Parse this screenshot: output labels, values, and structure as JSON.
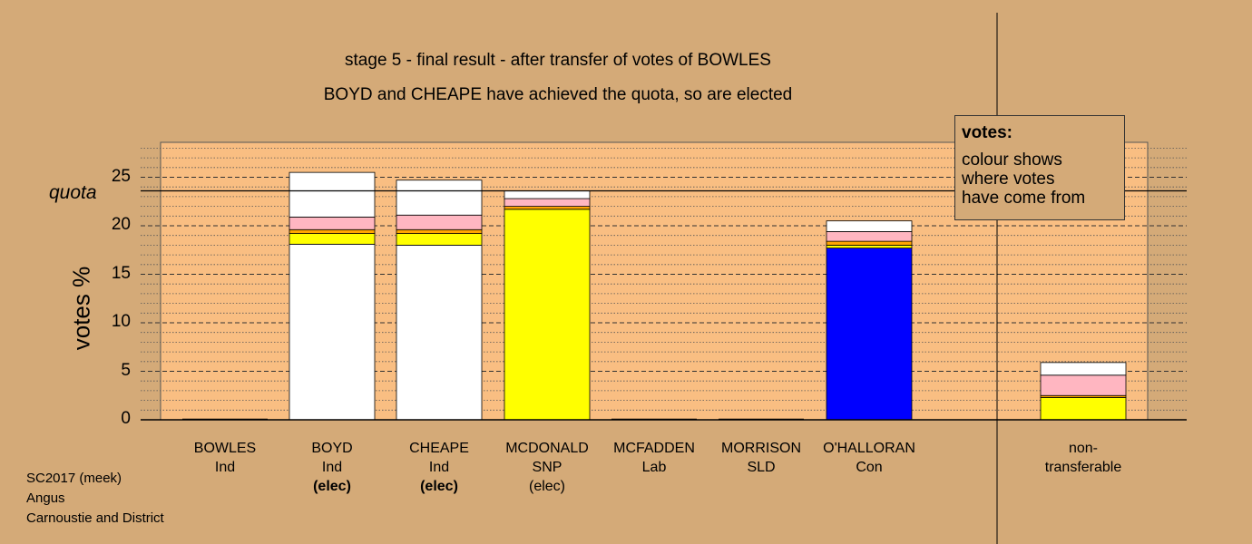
{
  "chart_data": {
    "type": "bar",
    "title": "stage 5 - final result - after transfer of votes of BOWLES",
    "subtitle": "BOYD and CHEAPE have achieved the quota, so are elected",
    "ylabel": "votes %",
    "ylim": [
      0,
      28.5
    ],
    "yticks": [
      "0",
      "5",
      "10",
      "15",
      "20",
      "25"
    ],
    "quota": {
      "label": "quota",
      "value": 23.6
    },
    "categories": [
      {
        "name": "BOWLES",
        "party": "Ind",
        "elected": ""
      },
      {
        "name": "BOYD",
        "party": "Ind",
        "elected": "(elec)",
        "bold": true
      },
      {
        "name": "CHEAPE",
        "party": "Ind",
        "elected": "(elec)",
        "bold": true
      },
      {
        "name": "MCDONALD",
        "party": "SNP",
        "elected": "(elec)"
      },
      {
        "name": "MCFADDEN",
        "party": "Lab",
        "elected": ""
      },
      {
        "name": "MORRISON",
        "party": "SLD",
        "elected": ""
      },
      {
        "name": "O'HALLORAN",
        "party": "Con",
        "elected": ""
      },
      {
        "name": "non-",
        "party": "transferable",
        "elected": ""
      }
    ],
    "stacks": [
      [],
      [
        {
          "color": "#FFFFFF",
          "value": 18.1
        },
        {
          "color": "#FFFF00",
          "value": 1.1
        },
        {
          "color": "#FFA500",
          "value": 0.4
        },
        {
          "color": "#FFB6C1",
          "value": 1.3
        },
        {
          "color": "#FFFFFF",
          "value": 4.6
        }
      ],
      [
        {
          "color": "#FFFFFF",
          "value": 18.0
        },
        {
          "color": "#FFFF00",
          "value": 1.2
        },
        {
          "color": "#FFA500",
          "value": 0.4
        },
        {
          "color": "#FFB6C1",
          "value": 1.5
        },
        {
          "color": "#FFFFFF",
          "value": 3.6
        }
      ],
      [
        {
          "color": "#FFFF00",
          "value": 21.7
        },
        {
          "color": "#FFA500",
          "value": 0.3
        },
        {
          "color": "#FFB6C1",
          "value": 0.8
        },
        {
          "color": "#FFFFFF",
          "value": 0.8
        }
      ],
      [],
      [],
      [
        {
          "color": "#0000FF",
          "value": 17.7
        },
        {
          "color": "#FFFF00",
          "value": 0.3
        },
        {
          "color": "#FFA500",
          "value": 0.4
        },
        {
          "color": "#FFB6C1",
          "value": 1.0
        },
        {
          "color": "#FFFFFF",
          "value": 1.1
        }
      ],
      [
        {
          "color": "#FFFF00",
          "value": 2.3
        },
        {
          "color": "#FFA500",
          "value": 0.2
        },
        {
          "color": "#FFB6C1",
          "value": 2.1
        },
        {
          "color": "#FFFFFF",
          "value": 1.3
        }
      ]
    ],
    "grid": true,
    "legend_placement": "top-right"
  },
  "legend": {
    "title": "votes:",
    "body": "colour shows\nwhere votes\nhave come from"
  },
  "footer": {
    "line1": "SC2017 (meek)",
    "line2": "Angus",
    "line3": "Carnoustie and District"
  }
}
